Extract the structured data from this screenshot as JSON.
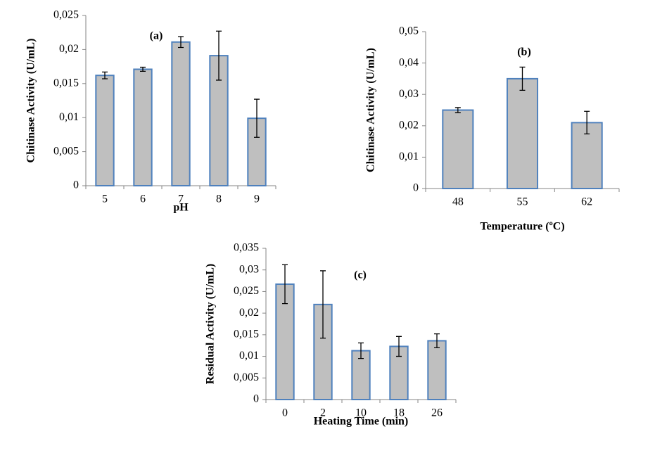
{
  "chart_data": [
    {
      "type": "bar",
      "title": "(a)",
      "x_label": "pH",
      "y_label": "Chitinase Activity (U/mL)",
      "categories": [
        "5",
        "6",
        "7",
        "8",
        "9"
      ],
      "values": [
        0.0162,
        0.0171,
        0.0211,
        0.0191,
        0.0099
      ],
      "errors": [
        0.0005,
        0.0003,
        0.0008,
        0.0036,
        0.0028
      ],
      "color": "#bfbfbf",
      "edge_color": "#4f81bd",
      "ylim": [
        0,
        0.025
      ],
      "yticks": [
        0,
        {
          "value": 0.005,
          "label": "0,005"
        },
        {
          "value": 0.01,
          "label": "0,01"
        },
        {
          "value": 0.015,
          "label": "0,015"
        },
        {
          "value": 0.02,
          "label": "0,02"
        },
        {
          "value": 0.025,
          "label": "0,025"
        }
      ]
    },
    {
      "type": "bar",
      "title": "(b)",
      "x_label": "Temperature (ºC)",
      "y_label": "Chitinase Activity (U/mL)",
      "categories": [
        "48",
        "55",
        "62"
      ],
      "values": [
        0.025,
        0.035,
        0.021
      ],
      "errors": [
        0.0008,
        0.0037,
        0.0036
      ],
      "color": "#bfbfbf",
      "edge_color": "#4f81bd",
      "ylim": [
        0,
        0.05
      ],
      "yticks": [
        0,
        {
          "value": 0.01,
          "label": "0,01"
        },
        {
          "value": 0.02,
          "label": "0,02"
        },
        {
          "value": 0.03,
          "label": "0,03"
        },
        {
          "value": 0.04,
          "label": "0,04"
        },
        {
          "value": 0.05,
          "label": "0,05"
        }
      ]
    },
    {
      "type": "bar",
      "title": "(c)",
      "x_label": "Heating Time (min)",
      "y_label": "Residual Activity (U/mL)",
      "categories": [
        "0",
        "2",
        "10",
        "18",
        "26"
      ],
      "values": [
        0.0267,
        0.022,
        0.0113,
        0.0123,
        0.0136
      ],
      "errors": [
        0.0045,
        0.0078,
        0.0018,
        0.0023,
        0.0016
      ],
      "color": "#bfbfbf",
      "edge_color": "#4f81bd",
      "ylim": [
        0,
        0.035
      ],
      "yticks": [
        0,
        {
          "value": 0.005,
          "label": "0,005"
        },
        {
          "value": 0.01,
          "label": "0,01"
        },
        {
          "value": 0.015,
          "label": "0,015"
        },
        {
          "value": 0.02,
          "label": "0,02"
        },
        {
          "value": 0.025,
          "label": "0,025"
        },
        {
          "value": 0.03,
          "label": "0,03"
        },
        {
          "value": 0.035,
          "label": "0,035"
        }
      ]
    }
  ]
}
